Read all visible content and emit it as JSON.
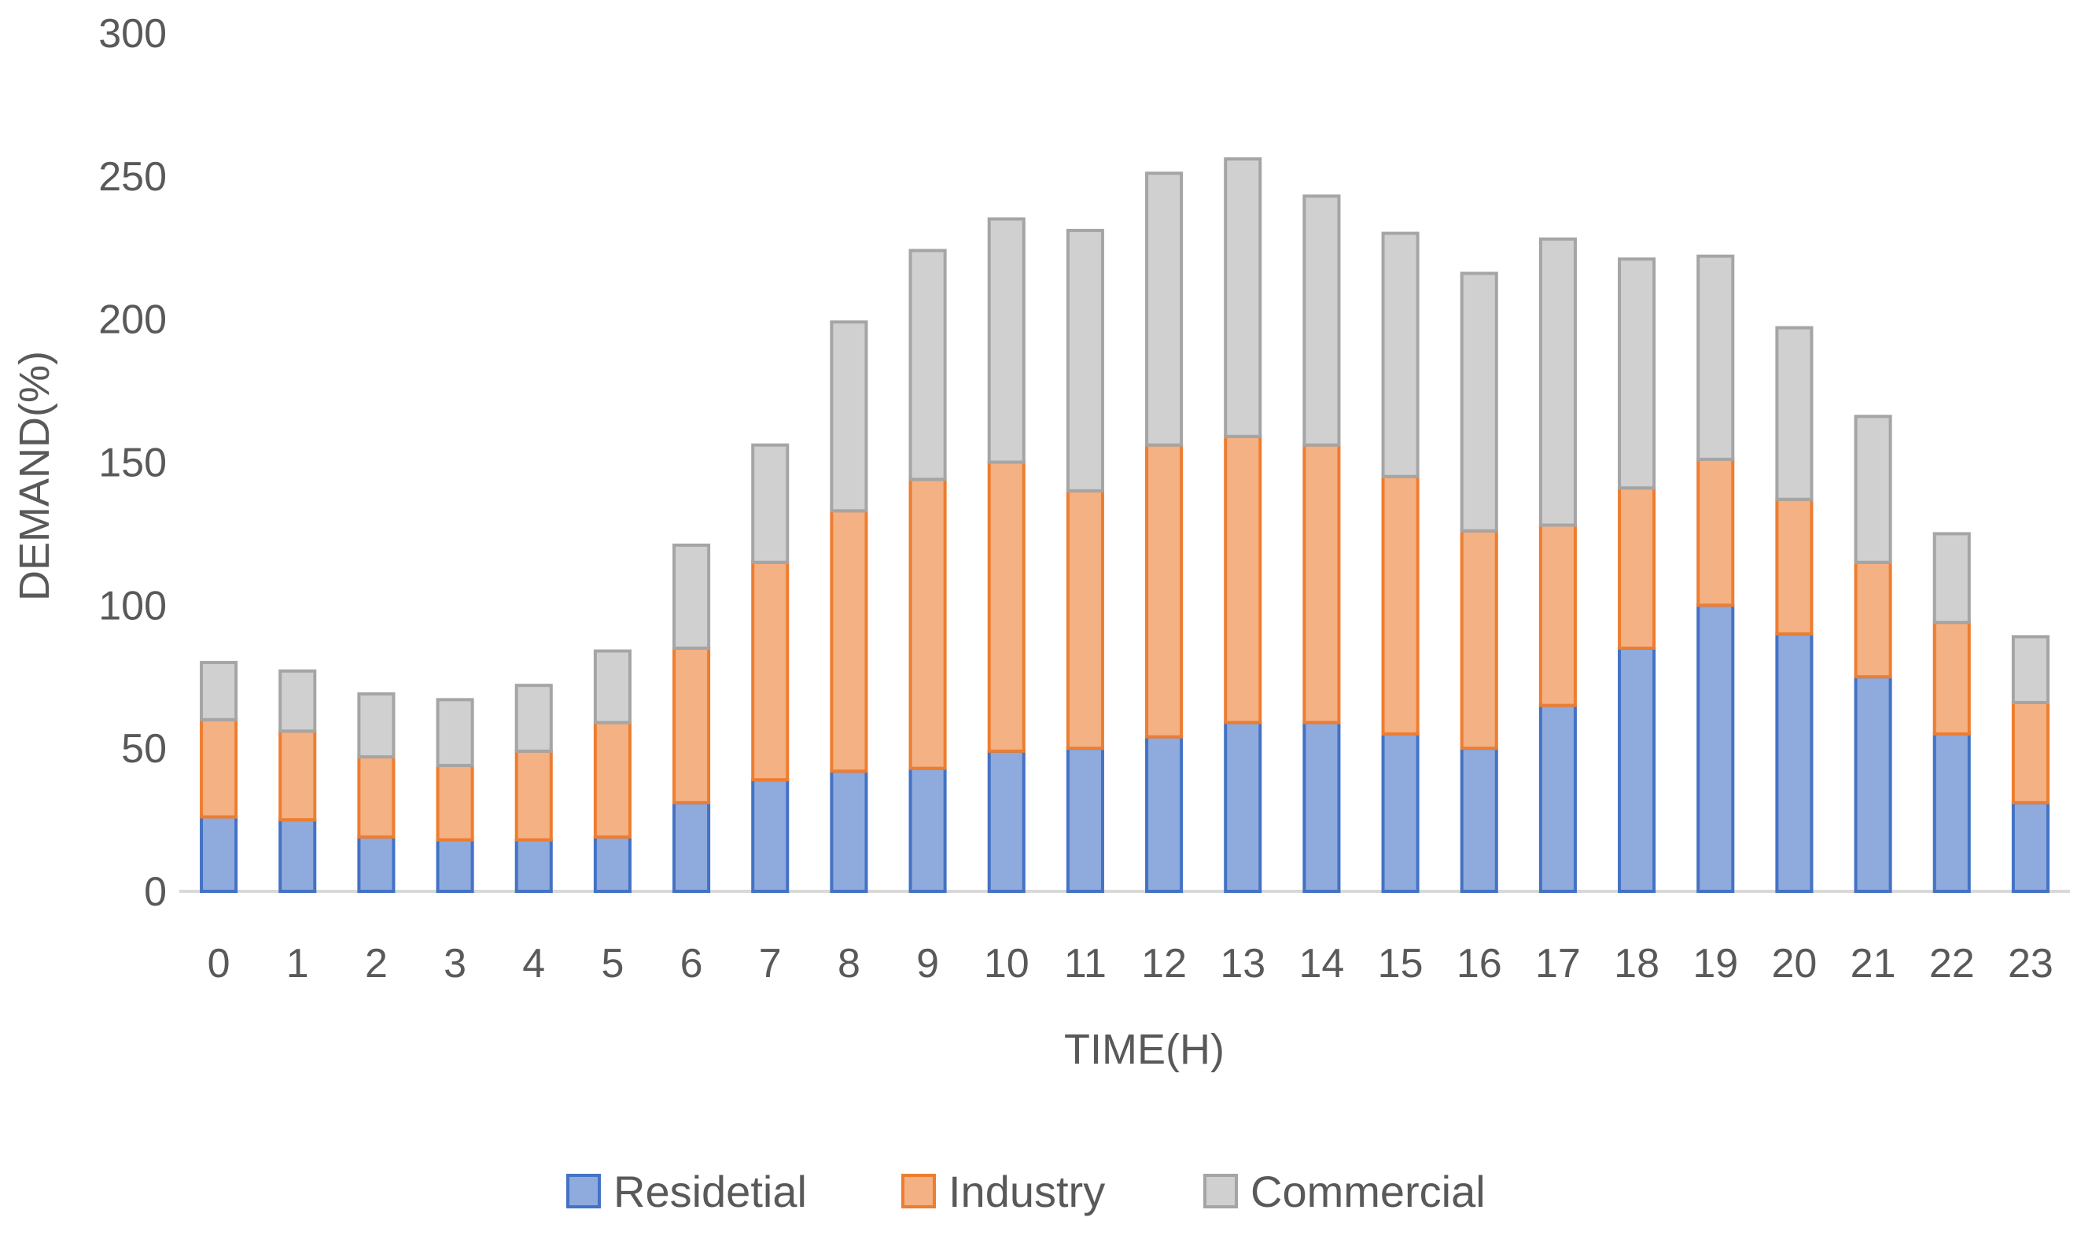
{
  "chart_data": {
    "type": "bar",
    "stacked": true,
    "xlabel": "TIME(H)",
    "ylabel": "DEMAND(%)",
    "ylim": [
      0,
      300
    ],
    "yticks": [
      0,
      50,
      100,
      150,
      200,
      250,
      300
    ],
    "grid": false,
    "legend_position": "bottom",
    "categories": [
      "0",
      "1",
      "2",
      "3",
      "4",
      "5",
      "6",
      "7",
      "8",
      "9",
      "10",
      "11",
      "12",
      "13",
      "14",
      "15",
      "16",
      "17",
      "18",
      "19",
      "20",
      "21",
      "22",
      "23"
    ],
    "series": [
      {
        "name": "Residetial",
        "color": "#4472C4",
        "fill": "#8FAADC",
        "values": [
          26,
          25,
          19,
          18,
          18,
          19,
          31,
          39,
          42,
          43,
          49,
          50,
          54,
          59,
          59,
          55,
          50,
          65,
          85,
          100,
          90,
          75,
          55,
          31
        ]
      },
      {
        "name": "Industry",
        "color": "#ED7D31",
        "fill": "#F4B183",
        "values": [
          34,
          31,
          28,
          26,
          31,
          40,
          54,
          76,
          91,
          101,
          101,
          90,
          102,
          100,
          97,
          90,
          76,
          63,
          56,
          51,
          47,
          40,
          39,
          35
        ]
      },
      {
        "name": "Commercial",
        "color": "#A5A5A5",
        "fill": "#D0D0D0",
        "values": [
          20,
          21,
          22,
          23,
          23,
          25,
          36,
          41,
          66,
          80,
          85,
          91,
          95,
          97,
          87,
          85,
          90,
          100,
          80,
          71,
          60,
          51,
          31,
          23
        ]
      }
    ]
  }
}
